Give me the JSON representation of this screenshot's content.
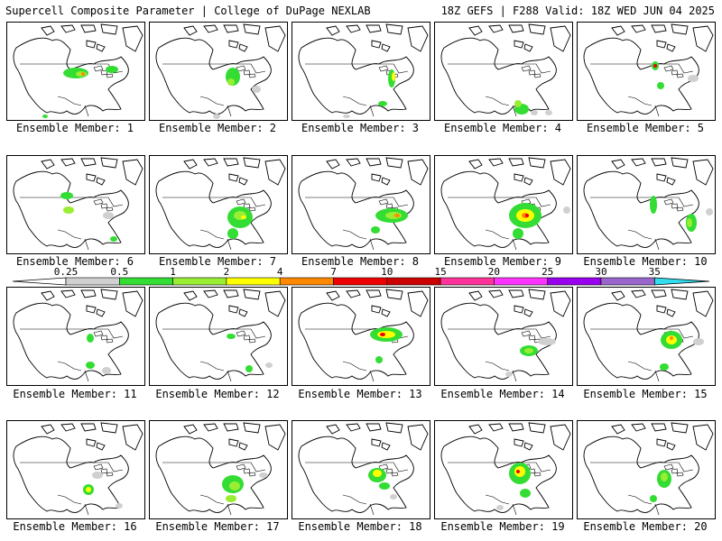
{
  "header": {
    "title_left": "Supercell Composite Parameter | College of DuPage NEXLAB",
    "title_right": "18Z GEFS | F288 Valid: 18Z WED JUN 04 2025"
  },
  "colorbar": {
    "levels": [
      "0.25",
      "0.5",
      "1",
      "2",
      "4",
      "7",
      "10",
      "15",
      "20",
      "25",
      "30",
      "35"
    ],
    "colors": [
      "#d0d0d0",
      "#33dd33",
      "#99ee33",
      "#ffff00",
      "#ff8800",
      "#ee0000",
      "#cc0000",
      "#ff3399",
      "#ff33ff",
      "#9900ee",
      "#9966cc",
      "#33ddee"
    ]
  },
  "members": [
    {
      "label": "Ensemble Member: 1"
    },
    {
      "label": "Ensemble Member: 2"
    },
    {
      "label": "Ensemble Member: 3"
    },
    {
      "label": "Ensemble Member: 4"
    },
    {
      "label": "Ensemble Member: 5"
    },
    {
      "label": "Ensemble Member: 6"
    },
    {
      "label": "Ensemble Member: 7"
    },
    {
      "label": "Ensemble Member: 8"
    },
    {
      "label": "Ensemble Member: 9"
    },
    {
      "label": "Ensemble Member: 10"
    },
    {
      "label": "Ensemble Member: 11"
    },
    {
      "label": "Ensemble Member: 12"
    },
    {
      "label": "Ensemble Member: 13"
    },
    {
      "label": "Ensemble Member: 14"
    },
    {
      "label": "Ensemble Member: 15"
    },
    {
      "label": "Ensemble Member: 16"
    },
    {
      "label": "Ensemble Member: 17"
    },
    {
      "label": "Ensemble Member: 18"
    },
    {
      "label": "Ensemble Member: 19"
    },
    {
      "label": "Ensemble Member: 20"
    }
  ]
}
